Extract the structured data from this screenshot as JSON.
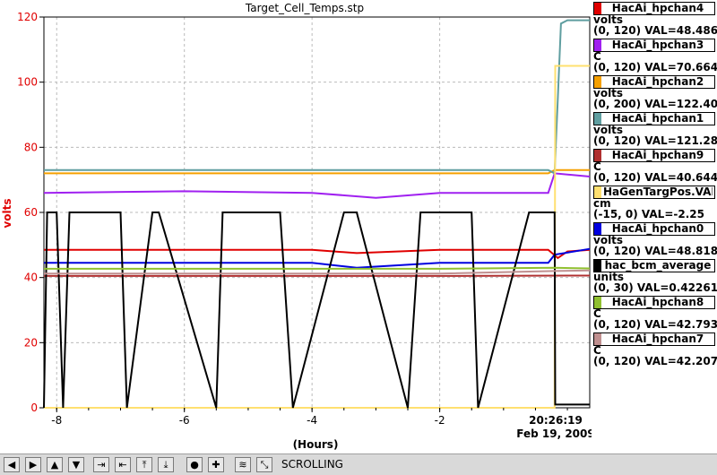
{
  "chart_data": {
    "type": "line",
    "title": "Target_Cell_Temps.stp",
    "ylabel": "volts",
    "xlabel": "(Hours)",
    "ylim": [
      0,
      120
    ],
    "xlim": [
      -8.2,
      0.35
    ],
    "yticks": [
      0,
      20,
      40,
      60,
      80,
      100,
      120
    ],
    "xticks": [
      -8,
      -6,
      -4,
      -2
    ],
    "xtick_labels": [
      "-8",
      "-6",
      "-4",
      "-2"
    ],
    "end_time": "20:26:19",
    "end_date": "Feb 19, 2009",
    "grid": true,
    "legend_position": "right",
    "series": [
      {
        "name": "HacAi_hpchan4",
        "color": "#e00000",
        "units": "volts",
        "range": "(0, 120)",
        "val": "VAL=48.4863",
        "x": [
          -8.2,
          -6,
          -4,
          -3.3,
          -2,
          -0.3,
          -0.15,
          0.0,
          0.35
        ],
        "y": [
          48.5,
          48.5,
          48.5,
          47.5,
          48.5,
          48.5,
          46,
          48,
          48.5
        ]
      },
      {
        "name": "HacAi_hpchan3",
        "color": "#a020f0",
        "units": "C",
        "range": "(0, 120)",
        "val": "VAL=70.6641",
        "x": [
          -8.2,
          -6,
          -4,
          -3,
          -2,
          -0.3,
          -0.2,
          0.35
        ],
        "y": [
          66,
          66.5,
          66,
          64.5,
          66,
          66,
          72,
          71
        ]
      },
      {
        "name": "HacAi_hpchan2",
        "color": "#f5a000",
        "units": "volts",
        "range": "(0, 200)",
        "val": "VAL=122.402",
        "x": [
          -8.2,
          -6,
          -4,
          -2,
          -0.3,
          -0.2,
          0.35
        ],
        "y": [
          72,
          72,
          72,
          72,
          72,
          73,
          73
        ]
      },
      {
        "name": "HacAi_hpchan1",
        "color": "#5f9ea0",
        "units": "volts",
        "range": "(0, 120)",
        "val": "VAL=121.289",
        "x": [
          -8.2,
          -6,
          -4,
          -2,
          -0.3,
          -0.2,
          -0.15,
          -0.1,
          0.0,
          0.35
        ],
        "y": [
          73,
          73,
          73,
          73,
          73,
          72,
          95,
          118,
          119,
          119
        ]
      },
      {
        "name": "HacAi_hpchan9",
        "color": "#b03030",
        "units": "C",
        "range": "(0, 120)",
        "val": "VAL=40.6445",
        "x": [
          -8.2,
          -4,
          -2,
          0.35
        ],
        "y": [
          40.5,
          40.5,
          40.5,
          40.6
        ]
      },
      {
        "name": "HaGenTargPos.VAL",
        "color": "#ffe070",
        "units": "cm",
        "range": "(-15, 0)",
        "val": "VAL=-2.25",
        "x": [
          -8.2,
          -0.2,
          -0.19,
          0.35
        ],
        "y": [
          0,
          0,
          105,
          105
        ]
      },
      {
        "name": "HacAi_hpchan0",
        "color": "#0000e0",
        "units": "volts",
        "range": "(0, 120)",
        "val": "VAL=48.8184",
        "x": [
          -8.2,
          -6,
          -4,
          -3.3,
          -2,
          -0.3,
          -0.2,
          0.35
        ],
        "y": [
          44.5,
          44.5,
          44.5,
          43,
          44.5,
          44.5,
          47,
          48.8
        ]
      },
      {
        "name": "hac_bcm_average",
        "color": "#000000",
        "units": "units",
        "range": "(0, 30)",
        "val": "VAL=0.422615",
        "x": [
          -8.2,
          -8.15,
          -8.0,
          -7.9,
          -7.8,
          -7.0,
          -6.9,
          -6.5,
          -6.4,
          -5.5,
          -5.4,
          -4.5,
          -4.3,
          -3.5,
          -3.3,
          -2.5,
          -2.3,
          -1.5,
          -1.4,
          -0.6,
          -0.5,
          -0.2,
          -0.19,
          0.35
        ],
        "y": [
          0,
          60,
          60,
          0,
          60,
          60,
          0,
          60,
          60,
          0,
          60,
          60,
          0,
          60,
          60,
          0,
          60,
          60,
          0,
          60,
          60,
          60,
          1,
          1
        ]
      },
      {
        "name": "HacAi_hpchan8",
        "color": "#90c030",
        "units": "C",
        "range": "(0, 120)",
        "val": "VAL=42.793",
        "x": [
          -8.2,
          -4,
          -2,
          -0.2,
          0.35
        ],
        "y": [
          42.7,
          42.7,
          42.7,
          43,
          42.8
        ]
      },
      {
        "name": "HacAi_hpchan7",
        "color": "#c09090",
        "units": "C",
        "range": "(0, 120)",
        "val": "VAL=42.207",
        "x": [
          -8.2,
          -4,
          -2,
          -0.2,
          0.35
        ],
        "y": [
          41.2,
          41.2,
          41.2,
          42,
          42.2
        ]
      }
    ]
  },
  "toolbar": {
    "status": "SCROLLING",
    "buttons": [
      {
        "name": "scroll-left",
        "glyph": "◀"
      },
      {
        "name": "scroll-right",
        "glyph": "▶"
      },
      {
        "name": "scroll-up",
        "glyph": "▲"
      },
      {
        "name": "scroll-down",
        "glyph": "▼"
      },
      {
        "name": "zoom-in-h",
        "glyph": "⇥"
      },
      {
        "name": "zoom-out-h",
        "glyph": "⇤"
      },
      {
        "name": "zoom-in-v",
        "glyph": "⤒"
      },
      {
        "name": "zoom-out-v",
        "glyph": "⤓"
      },
      {
        "name": "reset",
        "glyph": "●"
      },
      {
        "name": "add",
        "glyph": "✚"
      },
      {
        "name": "stagger",
        "glyph": "≋"
      },
      {
        "name": "zoom-box",
        "glyph": "⤡"
      },
      {
        "name": "scroll-mode",
        "glyph": "◧"
      }
    ]
  }
}
